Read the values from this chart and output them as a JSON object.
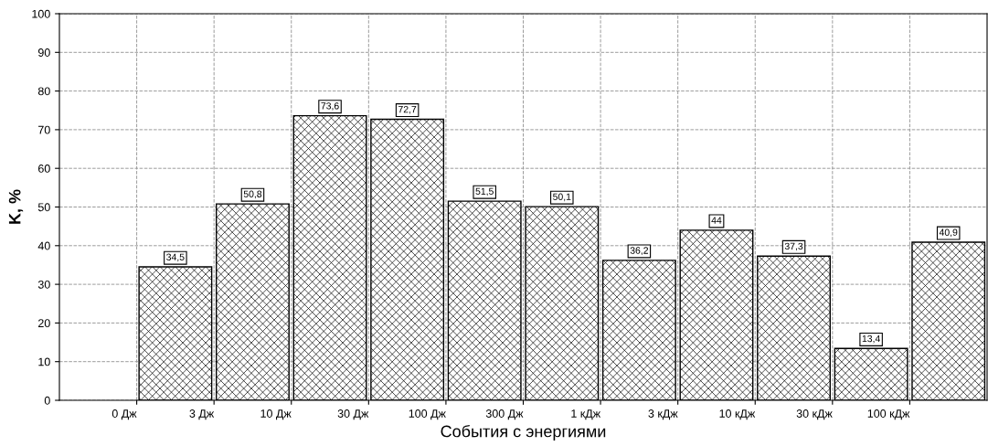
{
  "chart_data": {
    "type": "bar",
    "xlabel": "События с энергиями",
    "ylabel": "K, %",
    "categories": [
      "0 Дж",
      "3 Дж",
      "10 Дж",
      "30 Дж",
      "100 Дж",
      "300 Дж",
      "1 кДж",
      "3 кДж",
      "10 кДж",
      "30 кДж",
      "100 кДж",
      null
    ],
    "values": [
      null,
      34.5,
      50.8,
      73.6,
      72.7,
      51.5,
      50.1,
      36.2,
      44,
      37.3,
      13.4,
      40.9
    ],
    "value_labels": [
      null,
      "34,5",
      "50,8",
      "73,6",
      "72,7",
      "51,5",
      "50,1",
      "36,2",
      "44",
      "37,3",
      "13,4",
      "40,9"
    ],
    "color": "#000000",
    "ylim": [
      0,
      100
    ],
    "yticks": [
      0,
      10,
      20,
      30,
      40,
      50,
      60,
      70,
      80,
      90,
      100
    ],
    "grid": true
  }
}
